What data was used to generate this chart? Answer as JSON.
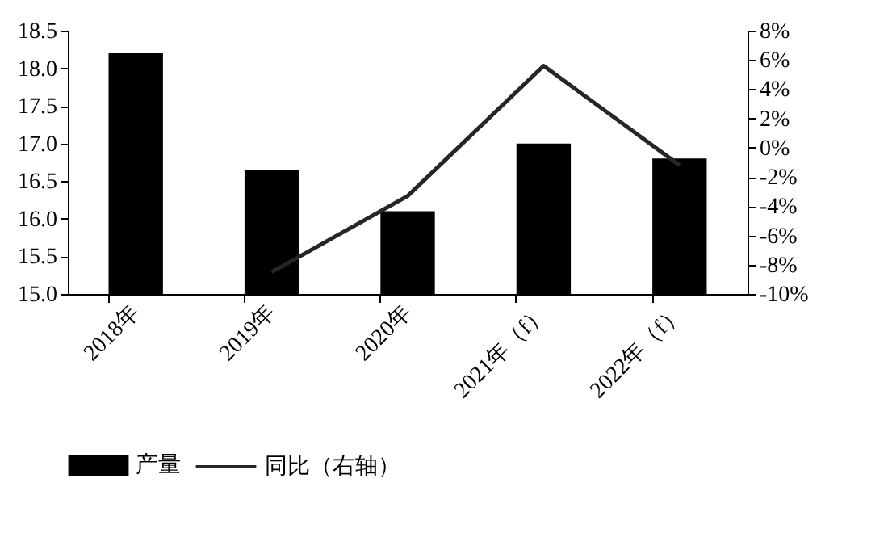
{
  "chart_data": {
    "type": "bar",
    "categories": [
      "2018年",
      "2019年",
      "2020年",
      "2021年（f）",
      "2022年（f）"
    ],
    "series": [
      {
        "name": "产量",
        "color": "#000000",
        "values": [
          18.2,
          16.65,
          16.1,
          17.0,
          16.8
        ]
      },
      {
        "name": "同比（右轴）",
        "type": "line",
        "axis": "y2",
        "color": "#262626",
        "values": [
          null,
          -8.5,
          -3.3,
          5.6,
          -1.2
        ]
      }
    ],
    "ylim": [
      15,
      18.5
    ],
    "yticks": [
      {
        "value": 15,
        "label": "15.0"
      },
      {
        "value": 15.5,
        "label": "15.5"
      },
      {
        "value": 16,
        "label": "16.0"
      },
      {
        "value": 16.5,
        "label": "16.5"
      },
      {
        "value": 17,
        "label": "17.0"
      },
      {
        "value": 17.5,
        "label": "17.5"
      },
      {
        "value": 18,
        "label": "18.0"
      },
      {
        "value": 18.5,
        "label": "18.5"
      }
    ],
    "y2lim": [
      -10,
      8
    ],
    "y2ticks": [
      {
        "value": -10,
        "label": "-10%"
      },
      {
        "value": -8,
        "label": "-8%"
      },
      {
        "value": -6,
        "label": "-6%"
      },
      {
        "value": -4,
        "label": "-4%"
      },
      {
        "value": -2,
        "label": "-2%"
      },
      {
        "value": 0,
        "label": "0%"
      },
      {
        "value": 2,
        "label": "2%"
      },
      {
        "value": 4,
        "label": "4%"
      },
      {
        "value": 6,
        "label": "6%"
      },
      {
        "value": 8,
        "label": "8%"
      }
    ],
    "legend": "bottom",
    "grid": false
  }
}
